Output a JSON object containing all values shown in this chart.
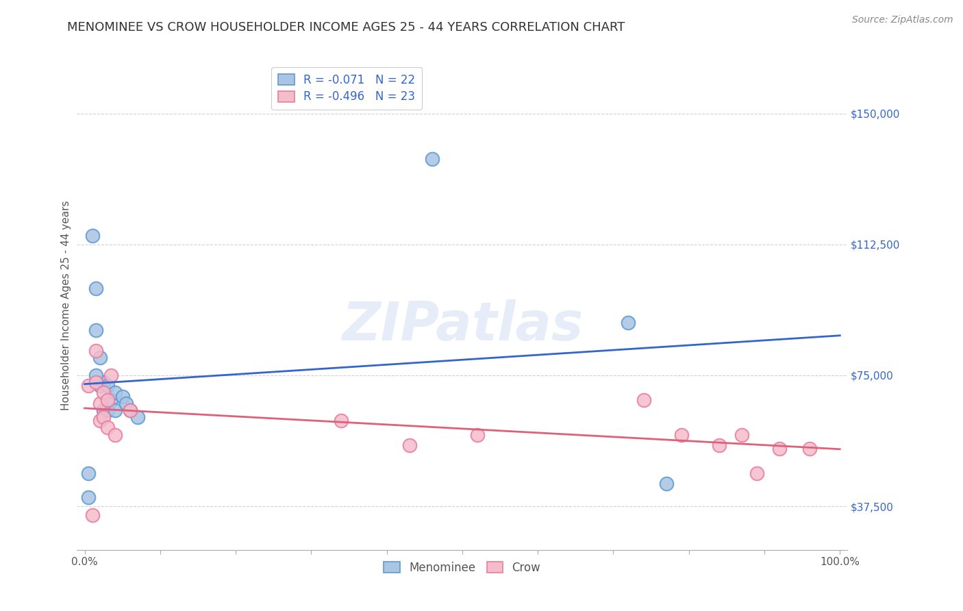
{
  "title": "MENOMINEE VS CROW HOUSEHOLDER INCOME AGES 25 - 44 YEARS CORRELATION CHART",
  "source": "Source: ZipAtlas.com",
  "ylabel": "Householder Income Ages 25 - 44 years",
  "xlim": [
    -0.01,
    1.01
  ],
  "ylim": [
    25000,
    165000
  ],
  "yticks": [
    37500,
    75000,
    112500,
    150000
  ],
  "ytick_labels": [
    "$37,500",
    "$75,000",
    "$112,500",
    "$150,000"
  ],
  "xticks": [
    0.0,
    0.1,
    0.2,
    0.3,
    0.4,
    0.5,
    0.6,
    0.7,
    0.8,
    0.9,
    1.0
  ],
  "xtick_labels": [
    "0.0%",
    "",
    "",
    "",
    "",
    "",
    "",
    "",
    "",
    "",
    "100.0%"
  ],
  "menominee_color": "#aac4e2",
  "menominee_edge_color": "#5b9bd5",
  "crow_color": "#f5bccb",
  "crow_edge_color": "#e87da0",
  "menominee_line_color": "#3366cc",
  "crow_line_color": "#e0607a",
  "background_color": "#ffffff",
  "grid_color": "#cccccc",
  "legend_color": "#3366cc",
  "R_menominee": -0.071,
  "N_menominee": 22,
  "R_crow": -0.496,
  "N_crow": 23,
  "menominee_x": [
    0.005,
    0.005,
    0.01,
    0.015,
    0.015,
    0.02,
    0.02,
    0.025,
    0.025,
    0.03,
    0.03,
    0.035,
    0.04,
    0.04,
    0.05,
    0.055,
    0.06,
    0.07,
    0.015,
    0.46,
    0.72,
    0.77
  ],
  "menominee_y": [
    47000,
    40000,
    115000,
    100000,
    88000,
    80000,
    72000,
    73000,
    65000,
    72000,
    65000,
    68000,
    70000,
    65000,
    69000,
    67000,
    65000,
    63000,
    75000,
    137000,
    90000,
    44000
  ],
  "crow_x": [
    0.005,
    0.01,
    0.015,
    0.015,
    0.02,
    0.02,
    0.025,
    0.025,
    0.03,
    0.03,
    0.035,
    0.04,
    0.06,
    0.34,
    0.43,
    0.52,
    0.74,
    0.79,
    0.84,
    0.87,
    0.89,
    0.92,
    0.96
  ],
  "crow_y": [
    72000,
    35000,
    82000,
    73000,
    67000,
    62000,
    70000,
    63000,
    68000,
    60000,
    75000,
    58000,
    65000,
    62000,
    55000,
    58000,
    68000,
    58000,
    55000,
    58000,
    47000,
    54000,
    54000
  ],
  "watermark_text": "ZIPatlas",
  "marker_size": 200,
  "line_width": 2.0,
  "title_fontsize": 13,
  "axis_label_fontsize": 11,
  "tick_fontsize": 11,
  "legend_fontsize": 12,
  "source_fontsize": 10
}
